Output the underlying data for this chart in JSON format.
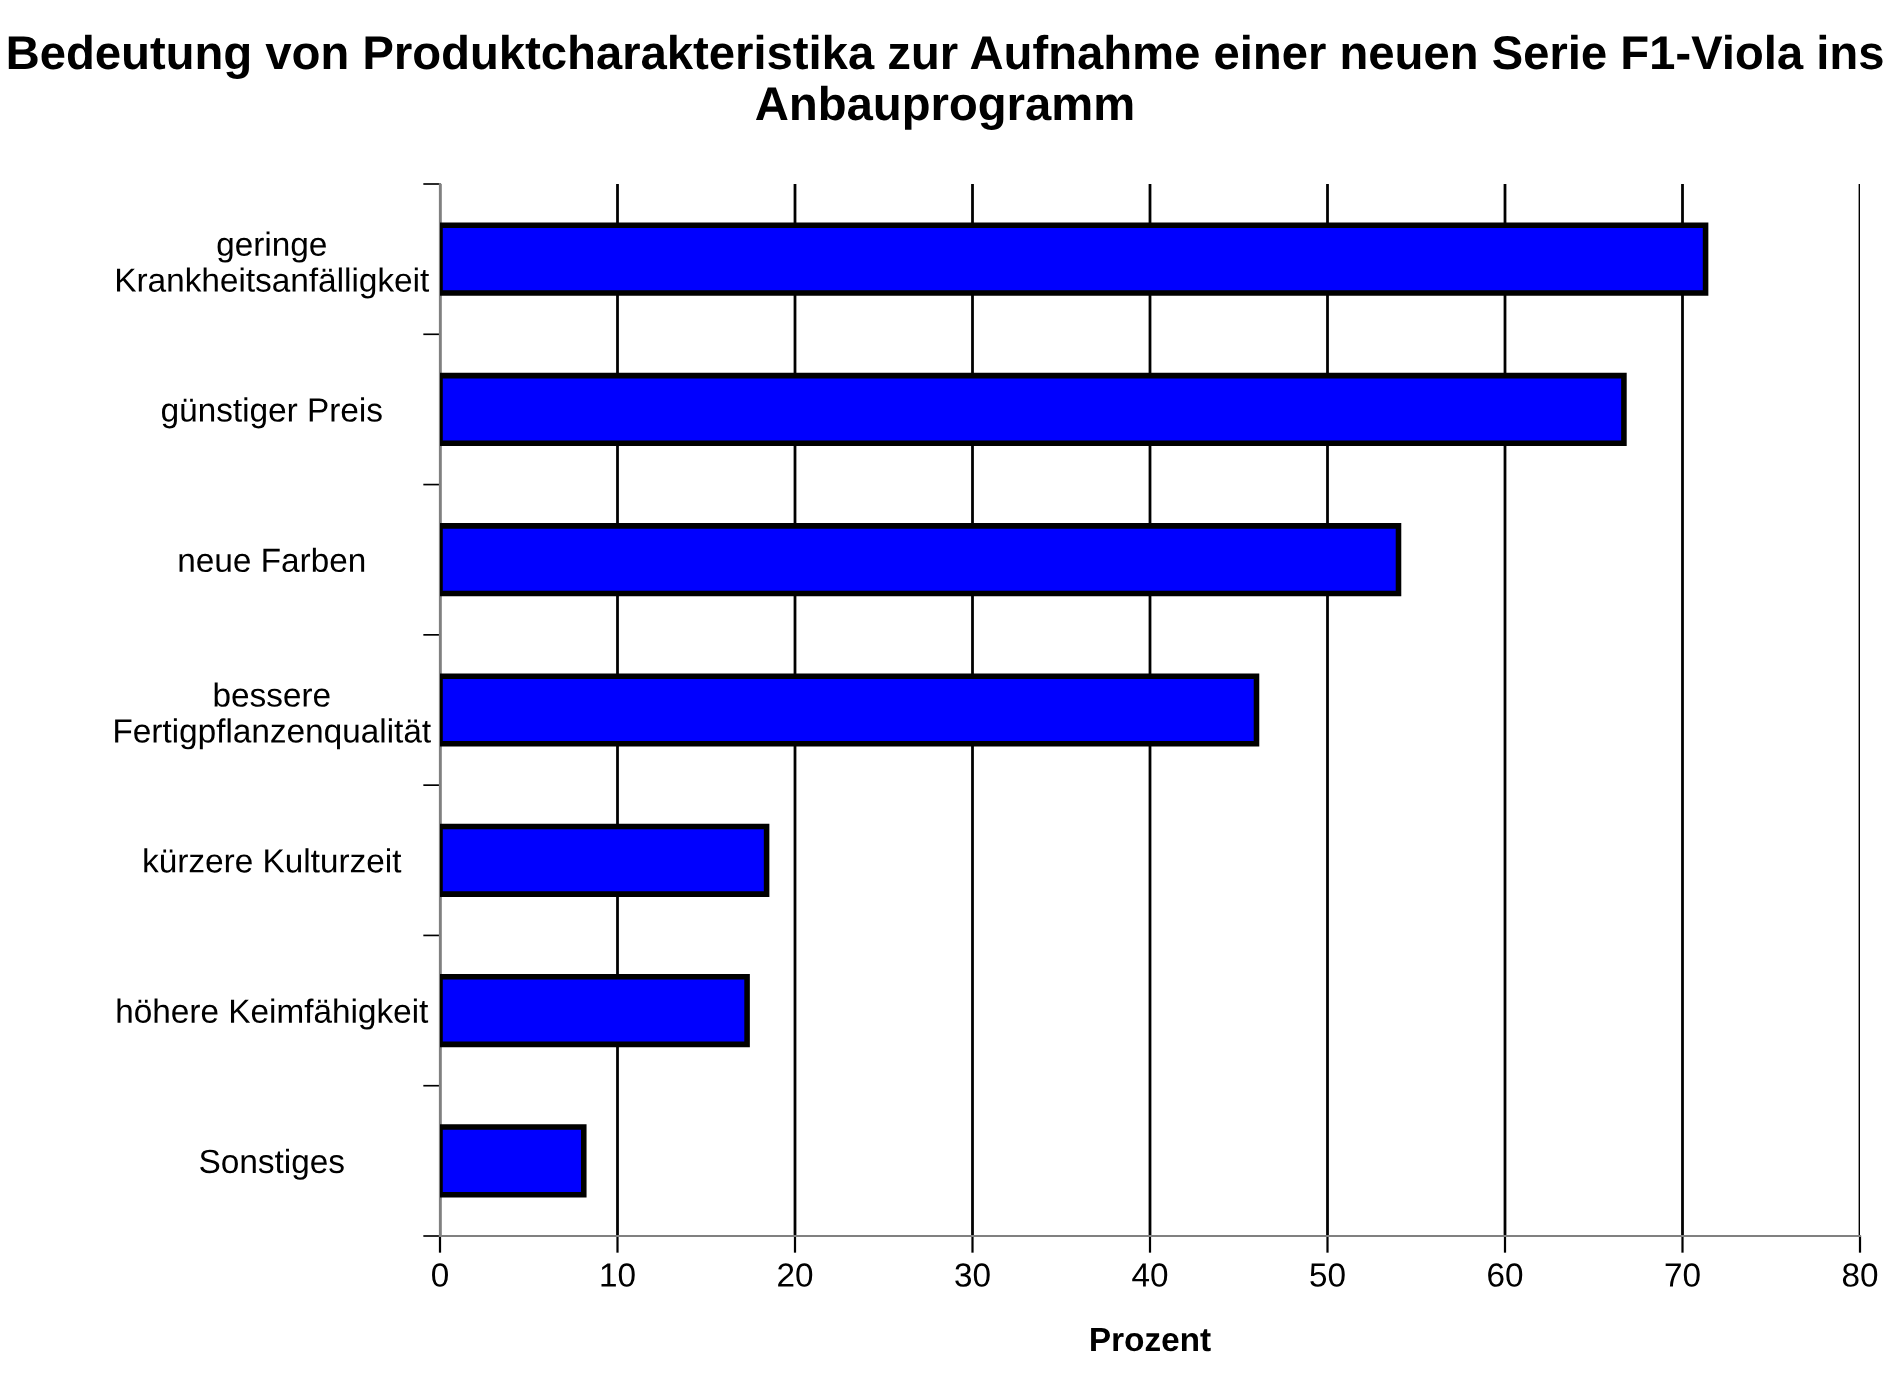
{
  "chart_data": {
    "type": "bar",
    "orientation": "horizontal",
    "title": "Bedeutung von Produktcharakteristika zur Aufnahme einer neuen Serie F1-Viola ins Anbauprogramm",
    "xlabel": "Prozent",
    "categories": [
      "geringe\nKrankheitsanfälligkeit",
      "günstiger Preis",
      "neue Farben",
      "bessere\nFertigpflanzenqualität",
      "kürzere Kulturzeit",
      "höhere Keimfähigkeit",
      "Sonstiges"
    ],
    "values": [
      71.3,
      66.7,
      54.0,
      46.0,
      18.4,
      17.3,
      8.1
    ],
    "color": "#0000ff",
    "xlim": [
      0,
      80
    ],
    "xticks": [
      0,
      10,
      20,
      30,
      40,
      50,
      60,
      70,
      80
    ],
    "grid": "x",
    "legend": false
  }
}
